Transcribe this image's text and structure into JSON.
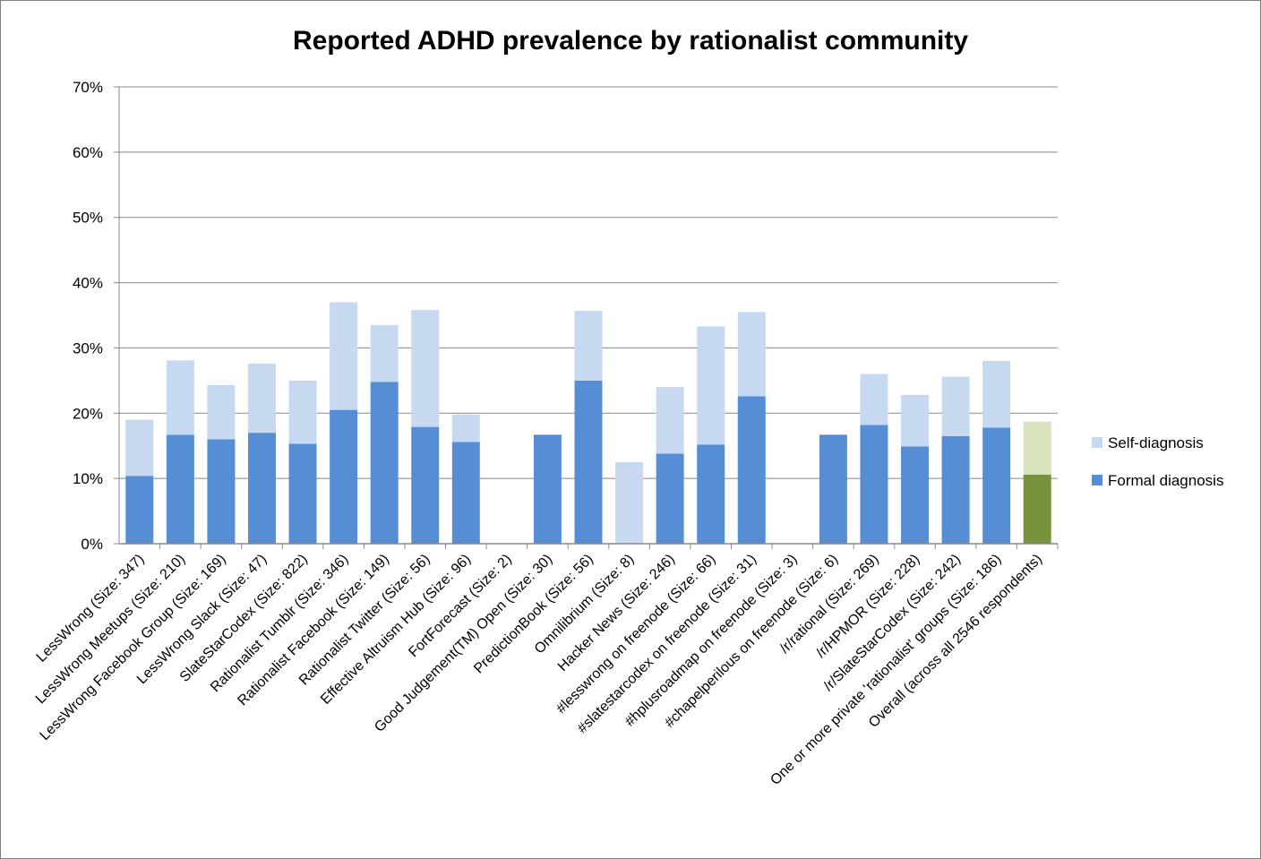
{
  "chart_data": {
    "type": "bar",
    "stacked": true,
    "title": "Reported ADHD prevalence by rationalist community",
    "xlabel": "",
    "ylabel": "",
    "ylim": [
      0,
      70
    ],
    "y_tick_step": 10,
    "y_tick_format": "percent",
    "grid": true,
    "legend_position": "right",
    "categories": [
      "LessWrong (Size: 347)",
      "LessWrong Meetups (Size: 210)",
      "LessWrong Facebook Group (Size: 169)",
      "LessWrong Slack (Size: 47)",
      "SlateStarCodex (Size: 822)",
      "Rationalist Tumblr (Size: 346)",
      "Rationalist Facebook (Size: 149)",
      "Rationalist Twitter (Size: 56)",
      "Effective Altruism Hub (Size: 96)",
      "FortForecast (Size: 2)",
      "Good Judgement(TM) Open  (Size: 30)",
      "PredictionBook (Size: 56)",
      "Omnilibrium (Size: 8)",
      "Hacker News (Size: 246)",
      "#lesswrong on freenode  (Size: 66)",
      "#slatestarcodex on freenode  (Size: 31)",
      "#hplusroadmap on freenode  (Size: 3)",
      "#chapelperilous on freenode (Size: 6)",
      "/r/rational (Size: 269)",
      "/r/HPMOR (Size: 228)",
      "/r/SlateStarCodex (Size: 242)",
      "One or more private 'rationalist' groups  (Size: 186)",
      "Overall (across all 2546 respondents)"
    ],
    "series": [
      {
        "name": "Formal diagnosis",
        "color": "#558ed5",
        "highlight_color": "#77933c",
        "values": [
          10.4,
          16.7,
          16.0,
          17.0,
          15.3,
          20.5,
          24.8,
          17.9,
          15.6,
          0,
          16.7,
          25.0,
          0,
          13.8,
          15.2,
          22.6,
          0,
          16.7,
          18.2,
          14.9,
          16.5,
          17.8,
          10.6
        ]
      },
      {
        "name": "Self-diagnosis",
        "color": "#c6d9f1",
        "highlight_color": "#d7e4bd",
        "values": [
          8.6,
          11.4,
          8.3,
          10.6,
          9.7,
          16.5,
          8.7,
          17.9,
          4.2,
          0,
          0,
          10.7,
          12.5,
          10.2,
          18.1,
          12.9,
          0,
          0,
          7.8,
          7.9,
          9.1,
          10.2,
          8.1
        ]
      }
    ],
    "highlight_category": "Overall (across all 2546 respondents)"
  }
}
